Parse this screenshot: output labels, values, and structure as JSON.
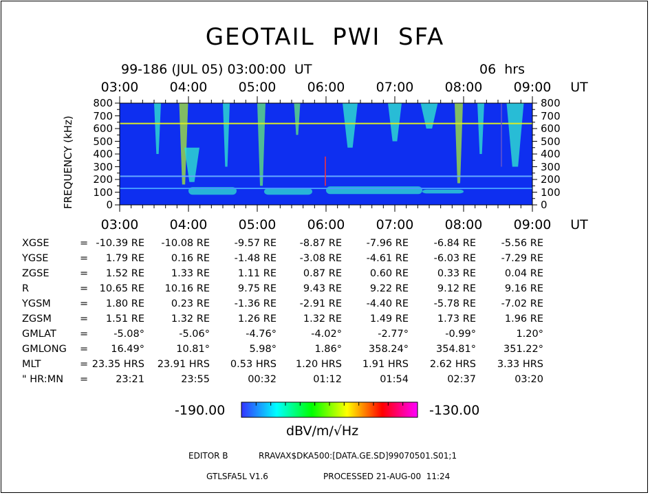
{
  "chart_data": {
    "type": "heatmap",
    "title": "GEOTAIL  PWI  SFA",
    "subtitle_left": "99-186 (JUL 05) 03:00:00  UT",
    "subtitle_right": "06  hrs",
    "x_ticks": [
      "03:00",
      "04:00",
      "05:00",
      "06:00",
      "07:00",
      "08:00",
      "09:00"
    ],
    "x_unit": "UT",
    "xlim_hours": [
      3,
      9
    ],
    "ylabel": "FREQUENCY (kHz)",
    "y_ticks": [
      0,
      100,
      200,
      300,
      400,
      500,
      600,
      700,
      800
    ],
    "ylim": [
      0,
      800
    ],
    "background_color": "#0e2ff0",
    "colorbar": {
      "min_label": "-190.00",
      "max_label": "-130.00",
      "unit": "dBV/m/√Hz",
      "colors": [
        "#3333ff",
        "#00ffff",
        "#00ff00",
        "#ffff00",
        "#ff0000",
        "#ff00ff"
      ]
    },
    "features": [
      {
        "type": "hline",
        "freq": 640,
        "color": "#ddee22"
      },
      {
        "type": "hline",
        "freq": 225,
        "color": "#66aaff"
      },
      {
        "type": "hline",
        "freq": 130,
        "color": "#4499ff"
      },
      {
        "type": "vline",
        "time": 5.99,
        "freq_from": 150,
        "freq_to": 380,
        "color": "#ff3333"
      },
      {
        "type": "vline",
        "time": 8.55,
        "freq_from": 300,
        "freq_to": 800,
        "color": "#6655cc"
      }
    ],
    "emissions": [
      {
        "time": 3.55,
        "freq_from": 400,
        "freq_to": 800,
        "width": 0.1,
        "color": "#30e0d0"
      },
      {
        "time": 3.93,
        "freq_from": 160,
        "freq_to": 800,
        "width": 0.13,
        "color": "#a0e040"
      },
      {
        "time": 4.05,
        "freq_from": 180,
        "freq_to": 450,
        "width": 0.22,
        "color": "#30e0d0"
      },
      {
        "time": 4.55,
        "freq_from": 300,
        "freq_to": 800,
        "width": 0.1,
        "color": "#30e0d0"
      },
      {
        "time": 5.06,
        "freq_from": 150,
        "freq_to": 800,
        "width": 0.12,
        "color": "#60e080"
      },
      {
        "time": 5.58,
        "freq_from": 550,
        "freq_to": 800,
        "width": 0.09,
        "color": "#60e080"
      },
      {
        "time": 6.35,
        "freq_from": 450,
        "freq_to": 800,
        "width": 0.22,
        "color": "#30e0d0"
      },
      {
        "time": 7.0,
        "freq_from": 500,
        "freq_to": 800,
        "width": 0.2,
        "color": "#30e0d0"
      },
      {
        "time": 7.5,
        "freq_from": 600,
        "freq_to": 800,
        "width": 0.25,
        "color": "#30e0d0"
      },
      {
        "time": 7.93,
        "freq_from": 170,
        "freq_to": 800,
        "width": 0.12,
        "color": "#a0e040"
      },
      {
        "time": 8.25,
        "freq_from": 400,
        "freq_to": 800,
        "width": 0.1,
        "color": "#30e0d0"
      },
      {
        "time": 8.75,
        "freq_from": 300,
        "freq_to": 800,
        "width": 0.25,
        "color": "#30e0d0"
      }
    ],
    "low_freq_bands": [
      {
        "time_from": 4.0,
        "time_to": 4.7,
        "freq_from": 80,
        "freq_to": 140,
        "color": "#30e0d0"
      },
      {
        "time_from": 5.1,
        "time_to": 5.8,
        "freq_from": 80,
        "freq_to": 130,
        "color": "#30e0d0"
      },
      {
        "time_from": 6.0,
        "time_to": 7.4,
        "freq_from": 85,
        "freq_to": 145,
        "color": "#30e0d0"
      },
      {
        "time_from": 7.4,
        "time_to": 8.0,
        "freq_from": 90,
        "freq_to": 120,
        "color": "#30e0d0"
      }
    ]
  },
  "ephemeris": [
    {
      "label": "XGSE",
      "eq": "=",
      "values": [
        "-10.39 RE",
        "-10.08 RE",
        "-9.57 RE",
        "-8.87 RE",
        "-7.96 RE",
        "-6.84 RE",
        "-5.56 RE"
      ]
    },
    {
      "label": "YGSE",
      "eq": "=",
      "values": [
        "1.79 RE",
        "0.16 RE",
        "-1.48 RE",
        "-3.08 RE",
        "-4.61 RE",
        "-6.03 RE",
        "-7.29 RE"
      ]
    },
    {
      "label": "ZGSE",
      "eq": "=",
      "values": [
        "1.52 RE",
        "1.33 RE",
        "1.11 RE",
        "0.87 RE",
        "0.60 RE",
        "0.33 RE",
        "0.04 RE"
      ]
    },
    {
      "label": "R",
      "eq": "=",
      "values": [
        "10.65 RE",
        "10.16 RE",
        "9.75 RE",
        "9.43 RE",
        "9.22 RE",
        "9.12 RE",
        "9.16 RE"
      ]
    },
    {
      "label": "YGSM",
      "eq": "=",
      "values": [
        "1.80 RE",
        "0.23 RE",
        "-1.36 RE",
        "-2.91 RE",
        "-4.40 RE",
        "-5.78 RE",
        "-7.02 RE"
      ]
    },
    {
      "label": "ZGSM",
      "eq": "=",
      "values": [
        "1.51 RE",
        "1.32 RE",
        "1.26 RE",
        "1.32 RE",
        "1.49 RE",
        "1.73 RE",
        "1.96 RE"
      ]
    },
    {
      "label": "GMLAT",
      "eq": "=",
      "values": [
        "-5.08°",
        "-5.06°",
        "-4.76°",
        "-4.02°",
        "-2.77°",
        "-0.99°",
        "1.20°"
      ]
    },
    {
      "label": "GMLONG",
      "eq": "=",
      "values": [
        "16.49°",
        "10.81°",
        "5.98°",
        "1.86°",
        "358.24°",
        "354.81°",
        "351.22°"
      ]
    },
    {
      "label": "MLT",
      "eq": "=",
      "values": [
        "23.35 HRS",
        "23.91 HRS",
        "0.53 HRS",
        "1.20 HRS",
        "1.91 HRS",
        "2.62 HRS",
        "3.33 HRS"
      ]
    },
    {
      "label": "\" HR:MN",
      "eq": "=",
      "values": [
        "23:21",
        "23:55",
        "00:32",
        "01:12",
        "01:54",
        "02:37",
        "03:20"
      ]
    }
  ],
  "footer": {
    "editor": "EDITOR B",
    "path": "RRAVAX$DKA500:[DATA.GE.SD]99070501.S01;1",
    "version": "GTLSFA5L V1.6",
    "processed": "PROCESSED 21-AUG-00  11:24"
  }
}
